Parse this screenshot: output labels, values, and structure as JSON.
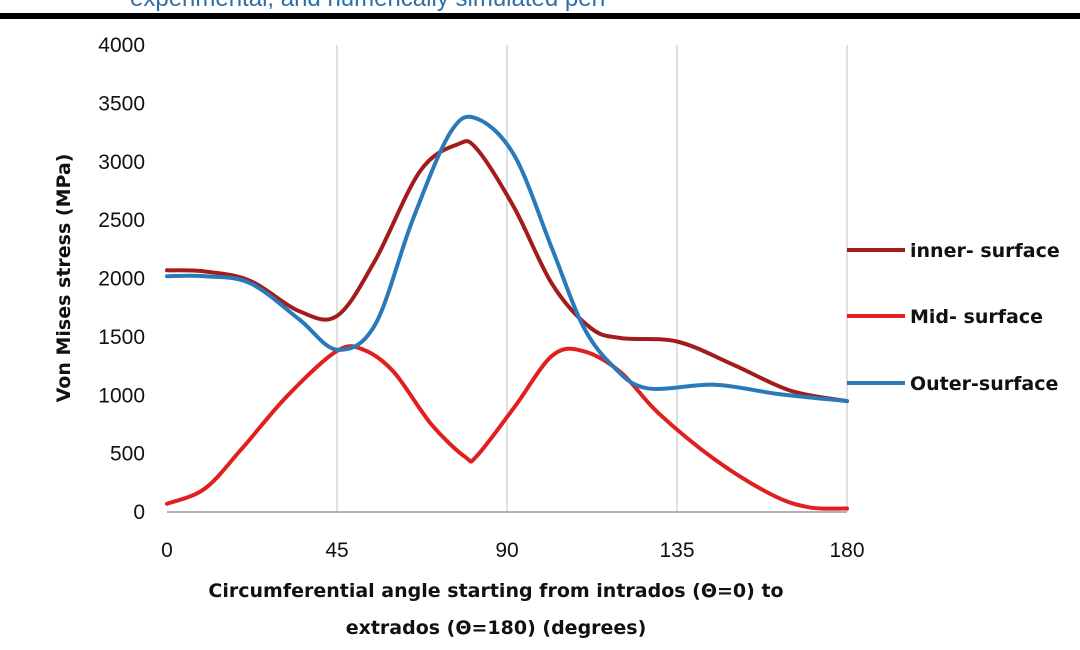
{
  "header": {
    "text": "experimental, and numerically simulated perf"
  },
  "chart_data": {
    "type": "line",
    "title": "",
    "xlabel_line1": "Circumferential angle starting from intrados (Θ=0) to",
    "xlabel_line2": "extrados (Θ=180) (degrees)",
    "ylabel": "Von Mises stress (MPa)",
    "xlim": [
      0,
      180
    ],
    "ylim": [
      0,
      4000
    ],
    "xticks": [
      0,
      45,
      90,
      135,
      180
    ],
    "yticks": [
      0,
      500,
      1000,
      1500,
      2000,
      2500,
      3000,
      3500,
      4000
    ],
    "grid": "vertical",
    "legend_position": "right",
    "series": [
      {
        "name": "inner- surface",
        "color": "#a31c1c",
        "points": [
          [
            0,
            2070
          ],
          [
            10,
            2060
          ],
          [
            22,
            1980
          ],
          [
            35,
            1720
          ],
          [
            45,
            1680
          ],
          [
            55,
            2150
          ],
          [
            67,
            2920
          ],
          [
            77,
            3150
          ],
          [
            82,
            3110
          ],
          [
            92,
            2600
          ],
          [
            102,
            1950
          ],
          [
            112,
            1580
          ],
          [
            120,
            1490
          ],
          [
            135,
            1460
          ],
          [
            150,
            1260
          ],
          [
            165,
            1040
          ],
          [
            180,
            950
          ]
        ]
      },
      {
        "name": "Mid- surface",
        "color": "#e01f1f",
        "points": [
          [
            0,
            70
          ],
          [
            10,
            200
          ],
          [
            20,
            550
          ],
          [
            32,
            1000
          ],
          [
            45,
            1380
          ],
          [
            52,
            1390
          ],
          [
            60,
            1200
          ],
          [
            70,
            750
          ],
          [
            79,
            470
          ],
          [
            82,
            480
          ],
          [
            92,
            900
          ],
          [
            102,
            1340
          ],
          [
            110,
            1380
          ],
          [
            120,
            1200
          ],
          [
            130,
            850
          ],
          [
            145,
            450
          ],
          [
            160,
            150
          ],
          [
            170,
            40
          ],
          [
            180,
            30
          ]
        ]
      },
      {
        "name": "Outer-surface",
        "color": "#2a7ab9",
        "points": [
          [
            0,
            2020
          ],
          [
            10,
            2020
          ],
          [
            22,
            1960
          ],
          [
            35,
            1650
          ],
          [
            45,
            1390
          ],
          [
            55,
            1600
          ],
          [
            65,
            2500
          ],
          [
            75,
            3250
          ],
          [
            82,
            3370
          ],
          [
            92,
            3050
          ],
          [
            102,
            2250
          ],
          [
            110,
            1600
          ],
          [
            118,
            1250
          ],
          [
            127,
            1060
          ],
          [
            145,
            1090
          ],
          [
            162,
            1010
          ],
          [
            180,
            950
          ]
        ]
      }
    ]
  }
}
